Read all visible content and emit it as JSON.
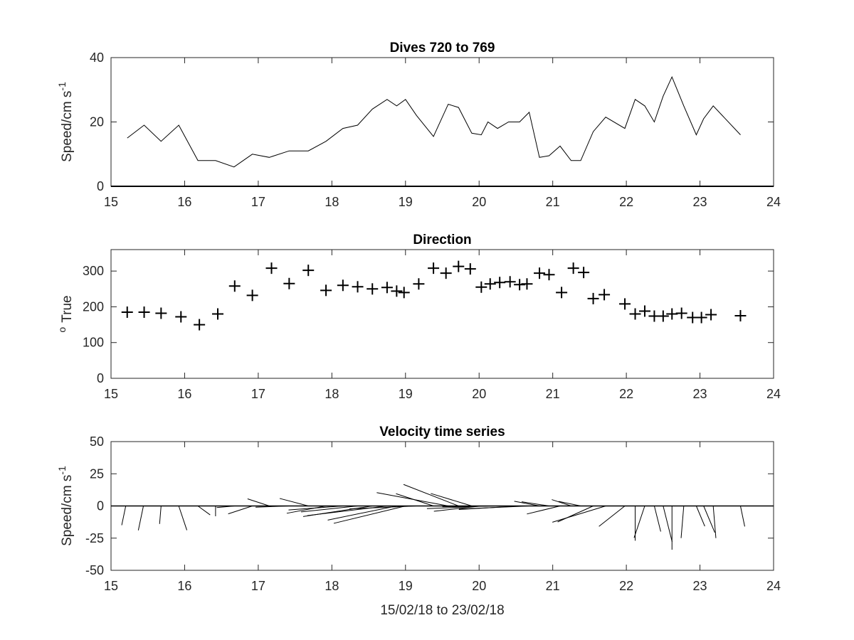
{
  "chart_data": [
    {
      "type": "line",
      "title": "Dives 720 to 769",
      "xlabel": "",
      "ylabel": "Speed/cm s",
      "ylabel_sup": "-1",
      "xlim": [
        15,
        24
      ],
      "ylim": [
        0,
        40
      ],
      "xticks": [
        "15",
        "16",
        "17",
        "18",
        "19",
        "20",
        "21",
        "22",
        "23",
        "24"
      ],
      "yticks": [
        "0",
        "20",
        "40"
      ],
      "grid": false,
      "series": [
        {
          "x": [
            15.22,
            15.45,
            15.68,
            15.92,
            16.18,
            16.42,
            16.67,
            16.92,
            17.15,
            17.42,
            17.68,
            17.92,
            18.15,
            18.35,
            18.55,
            18.75,
            18.88,
            19.0,
            19.15,
            19.38,
            19.58,
            19.72,
            19.9,
            20.03,
            20.12,
            20.25,
            20.4,
            20.55,
            20.68,
            20.82,
            20.95,
            21.1,
            21.25,
            21.38,
            21.55,
            21.72,
            21.98,
            22.12,
            22.25,
            22.38,
            22.5,
            22.62,
            22.78,
            22.95,
            23.05,
            23.18,
            23.55
          ],
          "y": [
            15,
            19,
            14,
            19,
            8,
            8,
            6,
            10,
            9,
            11,
            11,
            14,
            18,
            19,
            24,
            27,
            25,
            27,
            22,
            15.5,
            25.5,
            24.5,
            16.5,
            16,
            20,
            18,
            20,
            20,
            23,
            9,
            9.5,
            12.5,
            8,
            8,
            17,
            21.5,
            18,
            27,
            25,
            20,
            28,
            34,
            25,
            16,
            21,
            25,
            16
          ]
        }
      ]
    },
    {
      "type": "scatter",
      "title": "Direction",
      "xlabel": "",
      "ylabel": "True",
      "ylabel_sup": "o",
      "xlim": [
        15,
        24
      ],
      "ylim": [
        0,
        360
      ],
      "xticks": [
        "15",
        "16",
        "17",
        "18",
        "19",
        "20",
        "21",
        "22",
        "23",
        "24"
      ],
      "yticks": [
        "0",
        "100",
        "200",
        "300"
      ],
      "marker": "+",
      "grid": false,
      "series": [
        {
          "x": [
            15.22,
            15.45,
            15.68,
            15.95,
            16.2,
            16.45,
            16.68,
            16.92,
            17.18,
            17.42,
            17.68,
            17.92,
            18.15,
            18.35,
            18.55,
            18.75,
            18.88,
            18.98,
            19.18,
            19.38,
            19.55,
            19.72,
            19.88,
            20.03,
            20.15,
            20.28,
            20.42,
            20.55,
            20.65,
            20.82,
            20.95,
            21.12,
            21.28,
            21.42,
            21.55,
            21.7,
            21.98,
            22.12,
            22.25,
            22.38,
            22.5,
            22.62,
            22.75,
            22.9,
            23.02,
            23.15,
            23.55
          ],
          "y": [
            185,
            185,
            182,
            172,
            150,
            180,
            258,
            232,
            308,
            265,
            302,
            246,
            260,
            256,
            250,
            254,
            244,
            240,
            264,
            308,
            294,
            313,
            306,
            255,
            264,
            268,
            270,
            262,
            264,
            294,
            290,
            240,
            308,
            296,
            223,
            234,
            208,
            180,
            188,
            174,
            174,
            180,
            182,
            170,
            170,
            178,
            175
          ]
        }
      ]
    },
    {
      "type": "quiver",
      "title": "Velocity time series",
      "xlabel": "15/02/18 to 23/02/18",
      "ylabel": "Speed/cm s",
      "ylabel_sup": "-1",
      "xlim": [
        15,
        24
      ],
      "ylim": [
        -50,
        50
      ],
      "xticks": [
        "15",
        "16",
        "17",
        "18",
        "19",
        "20",
        "21",
        "22",
        "23",
        "24"
      ],
      "yticks": [
        "-50",
        "-25",
        "0",
        "25",
        "50"
      ],
      "grid": false,
      "speed_units_per_day": 24,
      "series": [
        {
          "name": "",
          "x": [
            15.2,
            15.44,
            15.68,
            15.92,
            16.18,
            16.42,
            16.68,
            16.92,
            17.15,
            17.42,
            17.68,
            17.92,
            18.15,
            18.35,
            18.55,
            18.75,
            18.88,
            19.0,
            19.15,
            19.38,
            19.58,
            19.72,
            19.9,
            20.03,
            20.12,
            20.25,
            20.4,
            20.55,
            20.68,
            20.82,
            20.95,
            21.1,
            21.25,
            21.38,
            21.55,
            21.72,
            21.98,
            22.12,
            22.25,
            22.38,
            22.5,
            22.62,
            22.78,
            22.95,
            23.05,
            23.18,
            23.55
          ],
          "speed": [
            15,
            19,
            14,
            19,
            8,
            8,
            6,
            10,
            9,
            11,
            11,
            14,
            18,
            19,
            24,
            27,
            25,
            27,
            22,
            15.5,
            25.5,
            24.5,
            16.5,
            16,
            20,
            18,
            20,
            20,
            23,
            9,
            9.5,
            12.5,
            8,
            8,
            17,
            21.5,
            18,
            27,
            25,
            20,
            28,
            34,
            25,
            16,
            21,
            25,
            16
          ],
          "direction": [
            185,
            185,
            182,
            172,
            150,
            180,
            258,
            232,
            308,
            265,
            302,
            246,
            260,
            256,
            250,
            254,
            244,
            240,
            264,
            308,
            294,
            313,
            306,
            255,
            264,
            268,
            270,
            262,
            264,
            294,
            290,
            240,
            308,
            296,
            223,
            234,
            208,
            180,
            188,
            174,
            174,
            180,
            182,
            170,
            170,
            178,
            175
          ]
        }
      ]
    }
  ]
}
